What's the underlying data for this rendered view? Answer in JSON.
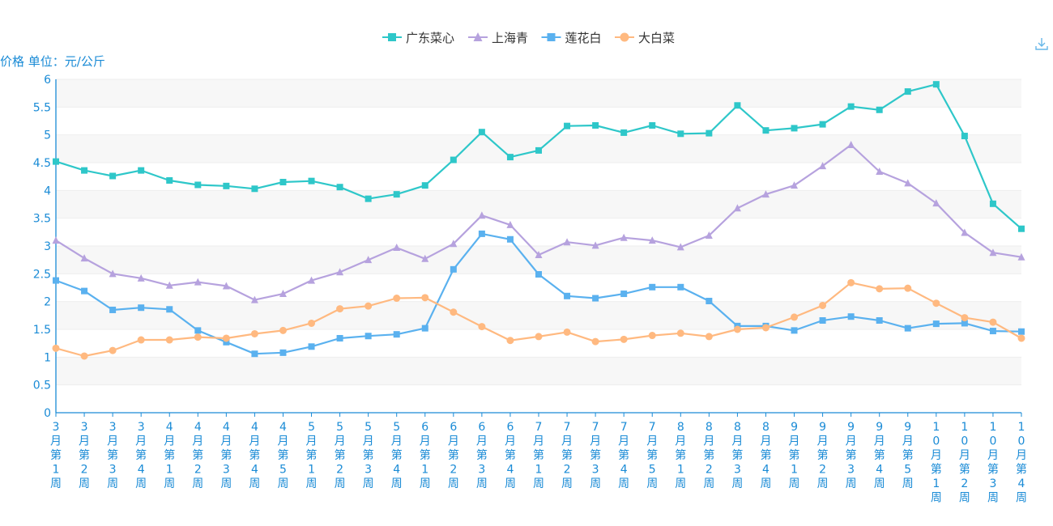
{
  "toolbar": {
    "download_icon": "download-icon"
  },
  "chart_data": {
    "type": "line",
    "title": "",
    "xlabel": "",
    "ylabel": "价格 单位：元/公斤",
    "ylim": [
      0,
      6
    ],
    "yticks": [
      "0",
      "0.5",
      "1",
      "1.5",
      "2",
      "2.5",
      "3",
      "3.5",
      "4",
      "4.5",
      "5",
      "5.5",
      "6"
    ],
    "grid": true,
    "legend_position": "top-center",
    "categories": [
      "3月第1周",
      "3月第2周",
      "3月第3周",
      "3月第4周",
      "4月第1周",
      "4月第2周",
      "4月第3周",
      "4月第4周",
      "4月第5周",
      "5月第1周",
      "5月第2周",
      "5月第3周",
      "5月第4周",
      "6月第1周",
      "6月第2周",
      "6月第3周",
      "6月第4周",
      "7月第1周",
      "7月第2周",
      "7月第3周",
      "7月第4周",
      "7月第5周",
      "8月第1周",
      "8月第2周",
      "8月第3周",
      "8月第4周",
      "9月第1周",
      "9月第2周",
      "9月第3周",
      "9月第4周",
      "9月第5周",
      "10月第1周",
      "10月第2周",
      "10月第3周",
      "10月第4周"
    ],
    "series": [
      {
        "name": "广东菜心",
        "color": "#2ec7c9",
        "marker": "square",
        "values": [
          4.52,
          4.36,
          4.26,
          4.36,
          4.18,
          4.1,
          4.08,
          4.03,
          4.15,
          4.17,
          4.06,
          3.85,
          3.93,
          4.09,
          4.55,
          5.05,
          4.6,
          4.72,
          5.16,
          5.17,
          5.04,
          5.17,
          5.02,
          5.03,
          5.53,
          5.08,
          5.12,
          5.19,
          5.51,
          5.45,
          5.78,
          5.91,
          4.98,
          3.76,
          3.31
        ]
      },
      {
        "name": "上海青",
        "color": "#b6a2de",
        "marker": "triangle",
        "values": [
          3.1,
          2.78,
          2.5,
          2.42,
          2.29,
          2.35,
          2.28,
          2.03,
          2.14,
          2.38,
          2.53,
          2.75,
          2.97,
          2.77,
          3.04,
          3.55,
          3.38,
          2.84,
          3.07,
          3.01,
          3.15,
          3.1,
          2.98,
          3.19,
          3.68,
          3.93,
          4.09,
          4.44,
          4.82,
          4.34,
          4.13,
          3.77,
          3.24,
          2.88,
          2.8
        ]
      },
      {
        "name": "莲花白",
        "color": "#5ab1ef",
        "marker": "square",
        "values": [
          2.38,
          2.19,
          1.85,
          1.89,
          1.86,
          1.48,
          1.27,
          1.06,
          1.08,
          1.19,
          1.34,
          1.38,
          1.41,
          1.52,
          2.58,
          3.22,
          3.12,
          2.49,
          2.1,
          2.06,
          2.14,
          2.26,
          2.26,
          2.01,
          1.56,
          1.56,
          1.48,
          1.66,
          1.73,
          1.66,
          1.52,
          1.6,
          1.61,
          1.47,
          1.46
        ]
      },
      {
        "name": "大白菜",
        "color": "#ffb980",
        "marker": "circle",
        "values": [
          1.16,
          1.02,
          1.12,
          1.31,
          1.31,
          1.36,
          1.34,
          1.42,
          1.48,
          1.61,
          1.87,
          1.92,
          2.06,
          2.07,
          1.81,
          1.55,
          1.3,
          1.37,
          1.45,
          1.28,
          1.32,
          1.39,
          1.43,
          1.37,
          1.5,
          1.53,
          1.72,
          1.93,
          2.34,
          2.23,
          2.24,
          1.97,
          1.71,
          1.63,
          1.34
        ]
      }
    ]
  }
}
